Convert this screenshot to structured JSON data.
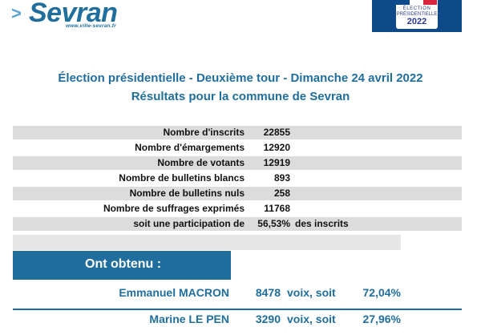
{
  "logo": {
    "mark": ">",
    "word": "Sevran",
    "url": "www.ville-sevran.fr"
  },
  "badge": {
    "line1": "ÉLECTION",
    "line2": "PRÉSIDENTIELLE",
    "line3": "2022",
    "flag_colors": [
      "#0e4a8a",
      "#ffffff",
      "#d7263d"
    ]
  },
  "title": "Élection présidentielle - Deuxième tour - Dimanche 24 avril 2022",
  "subtitle": "Résultats pour la commune de Sevran",
  "stats": [
    {
      "label": "Nombre d'inscrits",
      "value": "22855",
      "extra": ""
    },
    {
      "label": "Nombre d'émargements",
      "value": "12920",
      "extra": ""
    },
    {
      "label": "Nombre de votants",
      "value": "12919",
      "extra": ""
    },
    {
      "label": "Nombre de bulletins blancs",
      "value": "893",
      "extra": ""
    },
    {
      "label": "Nombre de bulletins nuls",
      "value": "258",
      "extra": ""
    },
    {
      "label": "Nombre de suffrages exprimés",
      "value": "11768",
      "extra": ""
    },
    {
      "label": "soit une participation de",
      "value": "56,53%",
      "extra": "des inscrits"
    }
  ],
  "results_header": "Ont obtenu :",
  "candidates": [
    {
      "name": "Emmanuel MACRON",
      "votes": "8478",
      "voix": "voix, soit",
      "pct": "72,04%"
    },
    {
      "name": "Marine LE PEN",
      "votes": "3290",
      "voix": "voix, soit",
      "pct": "27,96%"
    }
  ],
  "colors": {
    "brand_blue": "#1f6e9e",
    "row_shade": "#dcdcdc"
  }
}
